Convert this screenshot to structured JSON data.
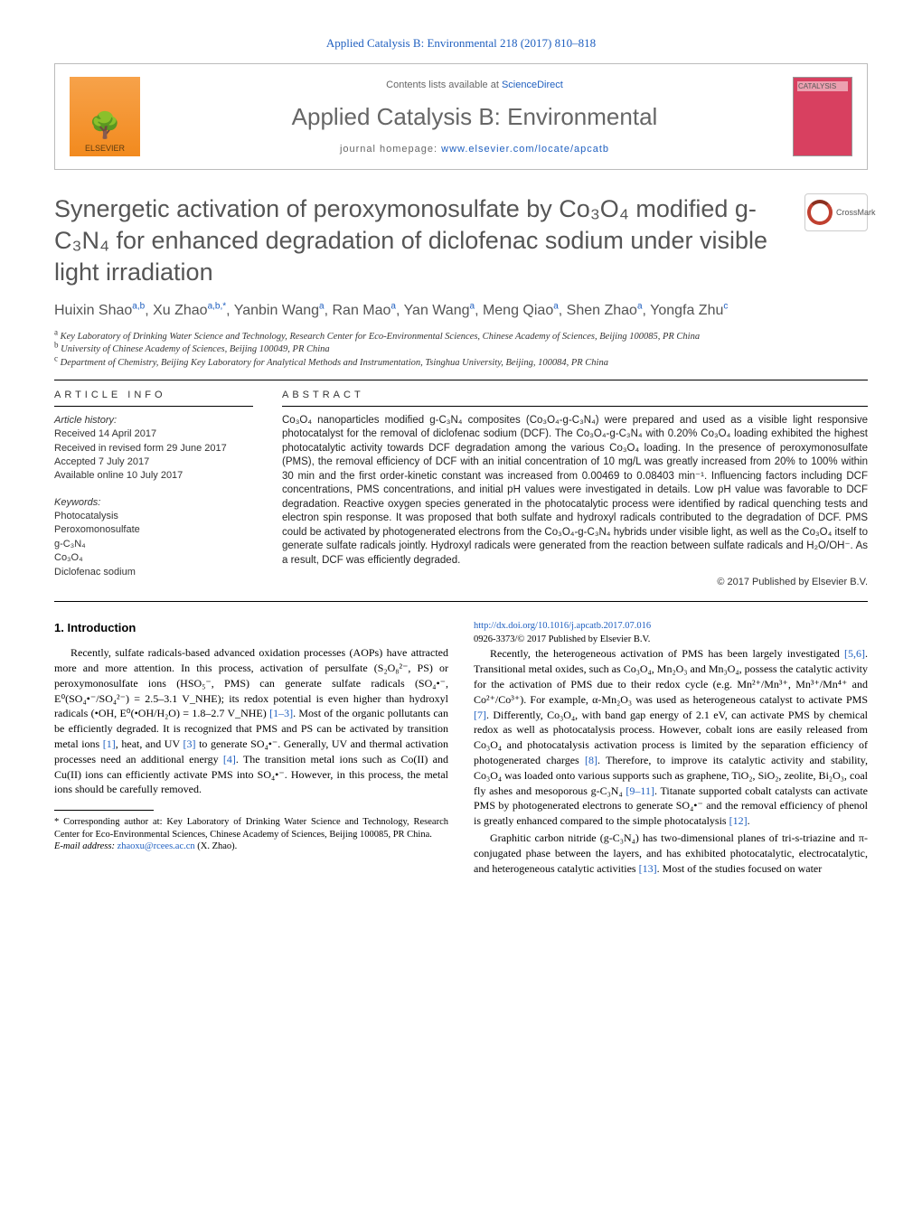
{
  "top_citation": "Applied Catalysis B: Environmental 218 (2017) 810–818",
  "header": {
    "contents_prefix": "Contents lists available at ",
    "contents_link": "ScienceDirect",
    "journal_name": "Applied Catalysis B: Environmental",
    "homepage_prefix": "journal homepage: ",
    "homepage_url": "www.elsevier.com/locate/apcatb",
    "elsevier_label": "ELSEVIER",
    "cover_label": "CATALYSIS"
  },
  "title": "Synergetic activation of peroxymonosulfate by Co₃O₄ modified g-C₃N₄ for enhanced degradation of diclofenac sodium under visible light irradiation",
  "crossmark_label": "CrossMark",
  "authors_html": "Huixin Shao<sup>a,b</sup>, Xu Zhao<sup>a,b,*</sup>, Yanbin Wang<sup>a</sup>, Ran Mao<sup>a</sup>, Yan Wang<sup>a</sup>, Meng Qiao<sup>a</sup>, Shen Zhao<sup>a</sup>, Yongfa Zhu<sup>c</sup>",
  "affiliations": {
    "a": "Key Laboratory of Drinking Water Science and Technology, Research Center for Eco-Environmental Sciences, Chinese Academy of Sciences, Beijing 100085, PR China",
    "b": "University of Chinese Academy of Sciences, Beijing 100049, PR China",
    "c": "Department of Chemistry, Beijing Key Laboratory for Analytical Methods and Instrumentation, Tsinghua University, Beijing, 100084, PR China"
  },
  "article_info": {
    "heading": "article info",
    "history_label": "Article history:",
    "received": "Received 14 April 2017",
    "revised": "Received in revised form 29 June 2017",
    "accepted": "Accepted 7 July 2017",
    "online": "Available online 10 July 2017",
    "keywords_label": "Keywords:",
    "keywords": [
      "Photocatalysis",
      "Peroxomonosulfate",
      "g-C₃N₄",
      "Co₃O₄",
      "Diclofenac sodium"
    ]
  },
  "abstract": {
    "heading": "abstract",
    "text": "Co₃O₄ nanoparticles modified g-C₃N₄ composites (Co₃O₄-g-C₃N₄) were prepared and used as a visible light responsive photocatalyst for the removal of diclofenac sodium (DCF). The Co₃O₄-g-C₃N₄ with 0.20% Co₃O₄ loading exhibited the highest photocatalytic activity towards DCF degradation among the various Co₃O₄ loading. In the presence of peroxymonosulfate (PMS), the removal efficiency of DCF with an initial concentration of 10 mg/L was greatly increased from 20% to 100% within 30 min and the first order-kinetic constant was increased from 0.00469 to 0.08403 min⁻¹. Influencing factors including DCF concentrations, PMS concentrations, and initial pH values were investigated in details. Low pH value was favorable to DCF degradation. Reactive oxygen species generated in the photocatalytic process were identified by radical quenching tests and electron spin response. It was proposed that both sulfate and hydroxyl radicals contributed to the degradation of DCF. PMS could be activated by photogenerated electrons from the Co₃O₄-g-C₃N₄ hybrids under visible light, as well as the Co₃O₄ itself to generate sulfate radicals jointly. Hydroxyl radicals were generated from the reaction between sulfate radicals and H₂O/OH⁻. As a result, DCF was efficiently degraded.",
    "copyright": "© 2017 Published by Elsevier B.V."
  },
  "section1": {
    "heading": "1. Introduction",
    "p1": "Recently, sulfate radicals-based advanced oxidation processes (AOPs) have attracted more and more attention. In this process, activation of persulfate (S₂O₈²⁻, PS) or peroxymonosulfate ions (HSO₅⁻, PMS) can generate sulfate radicals (SO₄•⁻, E⁰(SO₄•⁻/SO₄²⁻) = 2.5–3.1 V_NHE); its redox potential is even higher than hydroxyl radicals (•OH, E⁰(•OH/H₂O) = 1.8–2.7 V_NHE) ",
    "p1_ref1": "[1–3]",
    "p1b": ". Most of the organic pollutants can be efficiently degraded. It is recognized that PMS and PS can be activated by transition metal ions ",
    "p1_ref2": "[1]",
    "p1c": ", heat, and UV ",
    "p1_ref3": "[3]",
    "p1d": " to generate SO₄•⁻. Generally, UV and thermal activation processes need an additional energy ",
    "p1_ref4": "[4]",
    "p1e": ". The transition metal ions such as Co(II) and Cu(II) ions can efficiently activate PMS into SO₄•⁻. However, in this process, the metal ions should be carefully removed.",
    "p2a": "Recently, the heterogeneous activation of PMS has been largely investigated ",
    "p2_ref1": "[5,6]",
    "p2b": ". Transitional metal oxides, such as Co₃O₄, Mn₂O₃ and Mn₃O₄, possess the catalytic activity for the activation of PMS due to their redox cycle (e.g. Mn²⁺/Mn³⁺, Mn³⁺/Mn⁴⁺ and Co²⁺/Co³⁺). For example, α-Mn₂O₃ was used as heterogeneous catalyst to activate PMS ",
    "p2_ref2": "[7]",
    "p2c": ". Differently, Co₃O₄, with band gap energy of 2.1 eV, can activate PMS by chemical redox as well as photocatalysis process. However, cobalt ions are easily released from Co₃O₄ and photocatalysis activation process is limited by the separation efficiency of photogenerated charges ",
    "p2_ref3": "[8]",
    "p2d": ". Therefore, to improve its catalytic activity and stability, Co₃O₄ was loaded onto various supports such as graphene, TiO₂, SiO₂, zeolite, Bi₂O₃, coal fly ashes and mesoporous g-C₃N₄ ",
    "p2_ref4": "[9–11]",
    "p2e": ". Titanate supported cobalt catalysts can activate PMS by photogenerated electrons to generate SO₄•⁻ and the removal efficiency of phenol is greatly enhanced compared to the simple photocatalysis ",
    "p2_ref5": "[12]",
    "p2f": ".",
    "p3a": "Graphitic carbon nitride (g-C₃N₄) has two-dimensional planes of tri-s-triazine and π-conjugated phase between the layers, and has exhibited photocatalytic, electrocatalytic, and heterogeneous catalytic activities ",
    "p3_ref1": "[13]",
    "p3b": ". Most of the studies focused on water"
  },
  "footnotes": {
    "corr": "* Corresponding author at: Key Laboratory of Drinking Water Science and Technology, Research Center for Eco-Environmental Sciences, Chinese Academy of Sciences, Beijing 100085, PR China.",
    "email_label": "E-mail address: ",
    "email": "zhaoxu@rcees.ac.cn",
    "email_suffix": " (X. Zhao)."
  },
  "doi": {
    "url": "http://dx.doi.org/10.1016/j.apcatb.2017.07.016",
    "line2": "0926-3373/© 2017 Published by Elsevier B.V."
  },
  "colors": {
    "link": "#2060c0",
    "title_gray": "#555555",
    "elsevier_orange": "#f28a1e",
    "cover_magenta": "#d84060"
  }
}
